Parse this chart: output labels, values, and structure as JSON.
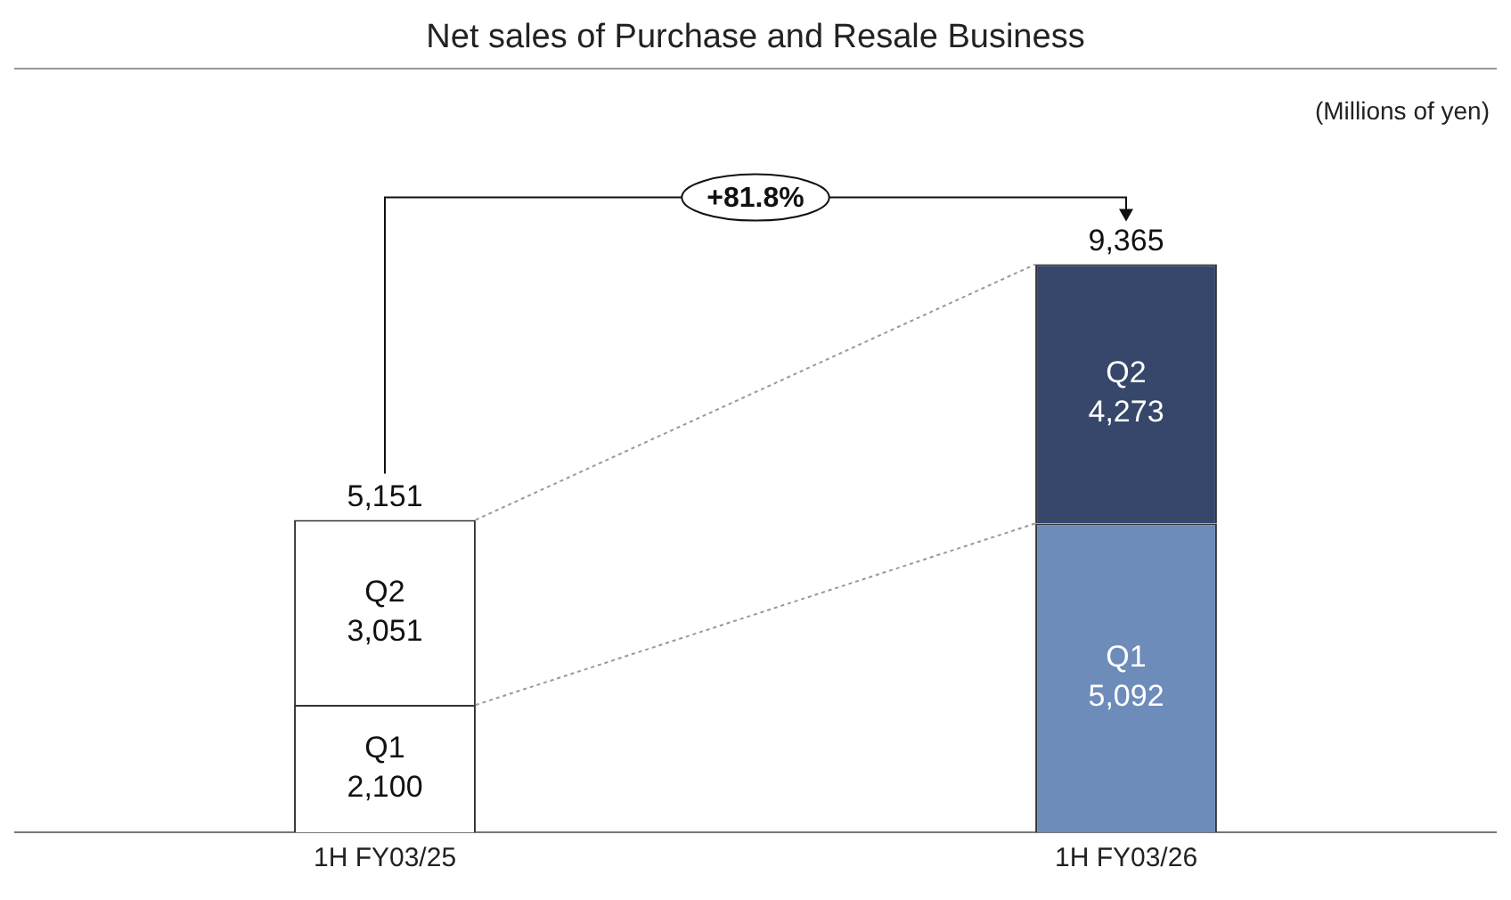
{
  "chart_data": {
    "type": "bar",
    "title": "Net sales of Purchase and Resale Business",
    "stacked": true,
    "legend": false,
    "grid": false,
    "categories": [
      "1H FY03/25",
      "1H FY03/26"
    ],
    "series": [
      {
        "name": "Q1",
        "colors": [
          "#ffffff",
          "#6e8cba"
        ],
        "values": [
          2100,
          5092
        ],
        "value_labels": [
          "2,100",
          "5,092"
        ]
      },
      {
        "name": "Q2",
        "colors": [
          "#ffffff",
          "#36476b"
        ],
        "values": [
          3051,
          4273
        ],
        "value_labels": [
          "3,051",
          "4,273"
        ]
      }
    ],
    "totals": [
      "5,151",
      "9,365"
    ],
    "annotations": [
      "(Millions of yen)",
      "+81.8%"
    ]
  }
}
